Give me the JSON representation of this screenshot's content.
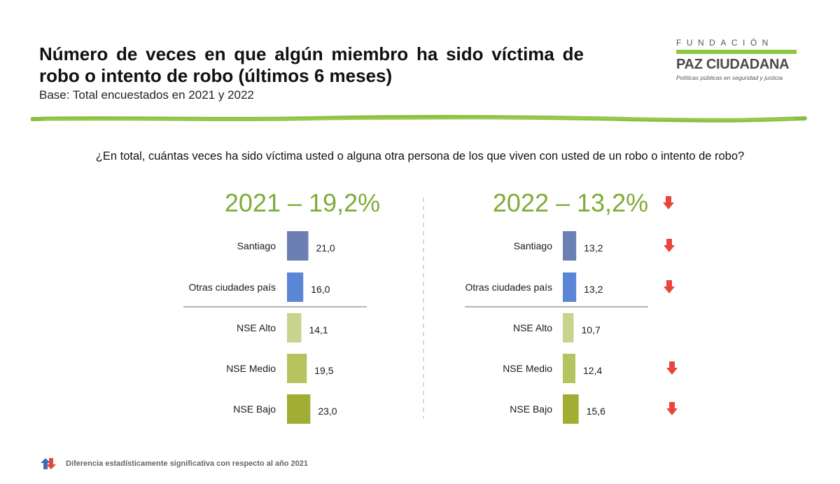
{
  "header": {
    "title": "Número de veces en que algún miembro ha sido víctima de robo o intento de robo (últimos 6 meses)",
    "subtitle": "Base: Total encuestados en 2021 y 2022"
  },
  "logo": {
    "top_text": "FUNDACIÓN",
    "name": "PAZ CIUDADANA",
    "tagline": "Políticas públicas en seguridad y justicia",
    "accent_color": "#8dc63f"
  },
  "question": "¿En total, cuántas veces ha sido víctima usted o alguna otra persona de los que viven con usted de un robo o intento de robo?",
  "footnote": "Diferencia estadísticamente significativa con respecto al año 2021",
  "colors": {
    "heading_green": "#7fac3a",
    "down_arrow": "#e8463c",
    "up_arrow": "#3b6db5"
  },
  "chart_data": [
    {
      "type": "bar",
      "orientation": "horizontal",
      "title": "2021 – 19,2%",
      "categories": [
        "Santiago",
        "Otras ciudades país",
        "NSE Alto",
        "NSE Medio",
        "NSE Bajo"
      ],
      "values": [
        21.0,
        16.0,
        14.1,
        19.5,
        23.0
      ],
      "value_labels": [
        "21,0",
        "16,0",
        "14,1",
        "19,5",
        "23,0"
      ],
      "significant_decrease": [
        false,
        false,
        false,
        false,
        false
      ],
      "title_significant_decrease": false,
      "bar_colors": [
        "#6b7fb3",
        "#5b86d6",
        "#c8d48e",
        "#b5c45e",
        "#a2ad34"
      ]
    },
    {
      "type": "bar",
      "orientation": "horizontal",
      "title": "2022 – 13,2%",
      "categories": [
        "Santiago",
        "Otras ciudades país",
        "NSE Alto",
        "NSE Medio",
        "NSE Bajo"
      ],
      "values": [
        13.2,
        13.2,
        10.7,
        12.4,
        15.6
      ],
      "value_labels": [
        "13,2",
        "13,2",
        "10,7",
        "12,4",
        "15,6"
      ],
      "significant_decrease": [
        true,
        true,
        false,
        true,
        true
      ],
      "title_significant_decrease": true,
      "bar_colors": [
        "#6b7fb3",
        "#5b86d6",
        "#c8d48e",
        "#b5c45e",
        "#a2ad34"
      ]
    }
  ]
}
